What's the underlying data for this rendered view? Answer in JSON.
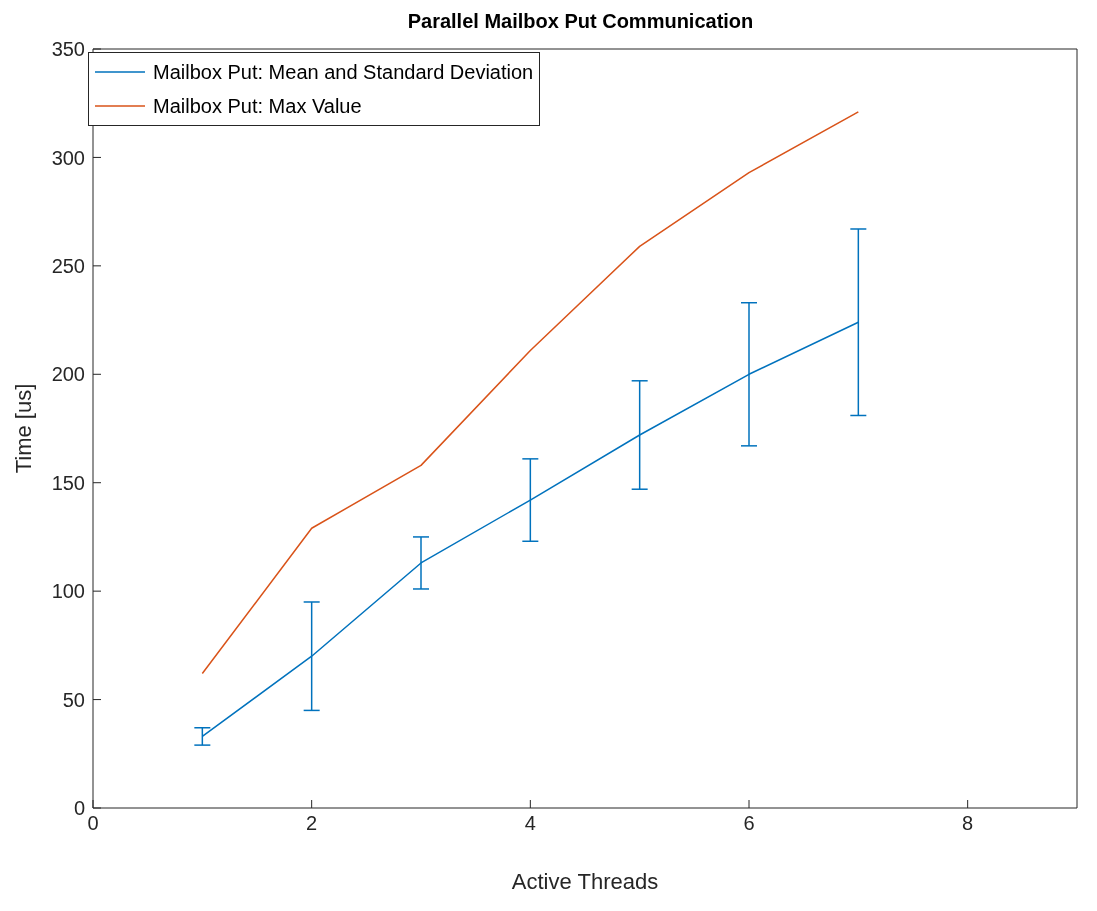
{
  "chart_data": {
    "type": "line",
    "title": "Parallel Mailbox Put Communication",
    "xlabel": "Active Threads",
    "ylabel": "Time [us]",
    "x": [
      1,
      2,
      3,
      4,
      5,
      6,
      7
    ],
    "series": [
      {
        "name": "Mailbox Put: Mean and Standard Deviation",
        "color": "#0072bd",
        "values": [
          33,
          70,
          113,
          142,
          172,
          200,
          224
        ],
        "errors": [
          4,
          25,
          12,
          19,
          25,
          33,
          43
        ]
      },
      {
        "name": "Mailbox Put: Max Value",
        "color": "#d95319",
        "values": [
          62,
          129,
          158,
          211,
          259,
          293,
          321
        ]
      }
    ],
    "xlim": [
      0,
      9
    ],
    "xticks": [
      0,
      2,
      4,
      6,
      8
    ],
    "ylim": [
      0,
      350
    ],
    "yticks": [
      0,
      50,
      100,
      150,
      200,
      250,
      300,
      350
    ],
    "legend": "top left"
  }
}
